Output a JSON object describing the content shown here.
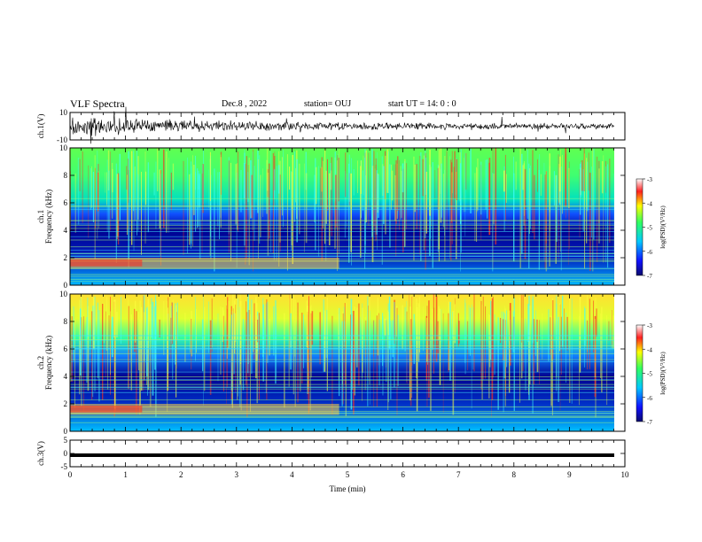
{
  "header": {
    "title": "VLF Spectra",
    "date": "Dec.8 , 2022",
    "station": "station= OUJ",
    "start": "start UT =  14: 0  : 0"
  },
  "chart_data": [
    {
      "type": "line",
      "panel": "ch1-waveform",
      "ylabel": "ch.1(V)",
      "ylim": [
        -10,
        10
      ],
      "yticks": [
        "10",
        "-10"
      ],
      "xlim": [
        0,
        10
      ]
    },
    {
      "type": "heatmap",
      "panel": "ch1-spectrogram",
      "ylabel": "ch.1\nFrequency (kHz)",
      "ylim": [
        0,
        10
      ],
      "yticks": [
        "0",
        "2",
        "4",
        "6",
        "8",
        "10"
      ],
      "xlim": [
        0,
        10
      ],
      "colorbar": {
        "label": "log(PSD)(V²/Hz)",
        "range": [
          -7,
          -3
        ],
        "ticks": [
          "-3",
          "-4",
          "-5",
          "-6",
          "-7"
        ]
      }
    },
    {
      "type": "heatmap",
      "panel": "ch2-spectrogram",
      "ylabel": "ch.2\nFrequency (kHz)",
      "ylim": [
        0,
        10
      ],
      "yticks": [
        "0",
        "2",
        "4",
        "6",
        "8",
        "10"
      ],
      "xlim": [
        0,
        10
      ],
      "colorbar": {
        "label": "log(PSD)(V²/Hz)",
        "range": [
          -7,
          -3
        ],
        "ticks": [
          "-3",
          "-4",
          "-5",
          "-6",
          "-7"
        ]
      }
    },
    {
      "type": "line",
      "panel": "ch3-waveform",
      "ylabel": "ch.3(V)",
      "ylim": [
        -5,
        5
      ],
      "yticks": [
        "5",
        "0",
        "-5"
      ],
      "xlim": [
        0,
        10
      ],
      "xlabel": "Time (min)",
      "xticks": [
        "0",
        "1",
        "2",
        "3",
        "4",
        "5",
        "6",
        "7",
        "8",
        "9",
        "10"
      ]
    }
  ]
}
